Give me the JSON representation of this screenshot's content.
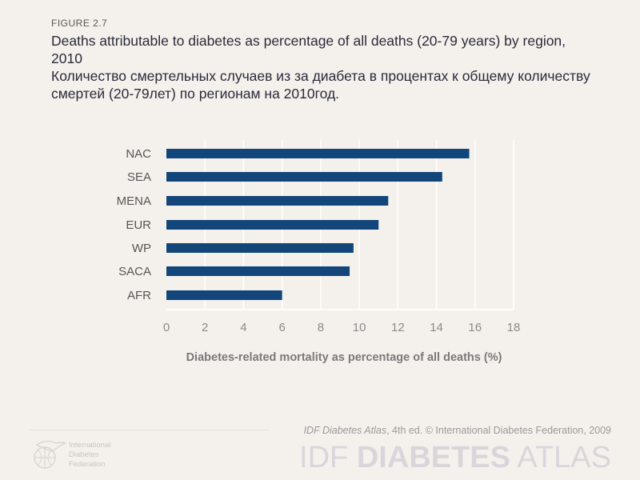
{
  "figure_label": "FIGURE  2.7",
  "title_en": "Deaths attributable to diabetes as percentage of all deaths (20-79 years) by region, 2010",
  "title_ru": "Количество смертельных случаев из за диабета в процентах к общему количеству смертей (20-79лет) по регионам на 2010год.",
  "chart_data": {
    "type": "bar",
    "orientation": "horizontal",
    "categories": [
      "NAC",
      "SEA",
      "MENA",
      "EUR",
      "WP",
      "SACA",
      "AFR"
    ],
    "values": [
      15.7,
      14.3,
      11.5,
      11.0,
      9.7,
      9.5,
      6.0
    ],
    "xlabel": "Diabetes-related mortality as percentage of all deaths (%)",
    "xlim": [
      0,
      18
    ],
    "xticks": [
      "0",
      "2",
      "4",
      "6",
      "8",
      "10",
      "12",
      "14",
      "16",
      "18"
    ],
    "grid": true,
    "bar_color": "#12457a"
  },
  "footer": {
    "credit_italic": "IDF Diabetes Atlas",
    "credit_rest": ", 4th ed.  © International Diabetes Federation, 2009",
    "brand_light": "IDF ",
    "brand_bold": "DIABETES",
    "brand_end": " ATLAS",
    "org_lines": [
      "International",
      "Diabetes",
      "Federation"
    ]
  }
}
